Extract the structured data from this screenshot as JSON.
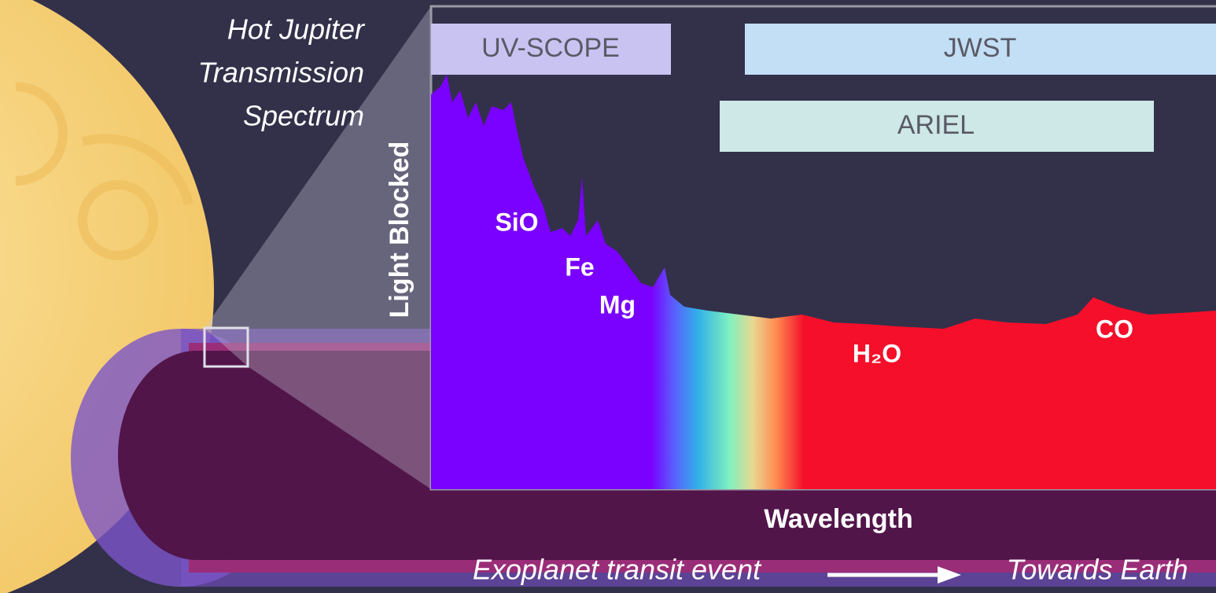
{
  "title": {
    "lines": [
      "Hot Jupiter",
      "Transmission",
      "Spectrum"
    ]
  },
  "instruments": [
    "UV-SCOPE",
    "JWST",
    "ARIEL"
  ],
  "axis_labels": {
    "y": "Light Blocked",
    "x": "Wavelength"
  },
  "species": [
    "SiO",
    "Fe",
    "Mg",
    "H₂O",
    "CO"
  ],
  "footer": {
    "left": "Exoplanet transit event",
    "right": "Towards Earth"
  }
}
